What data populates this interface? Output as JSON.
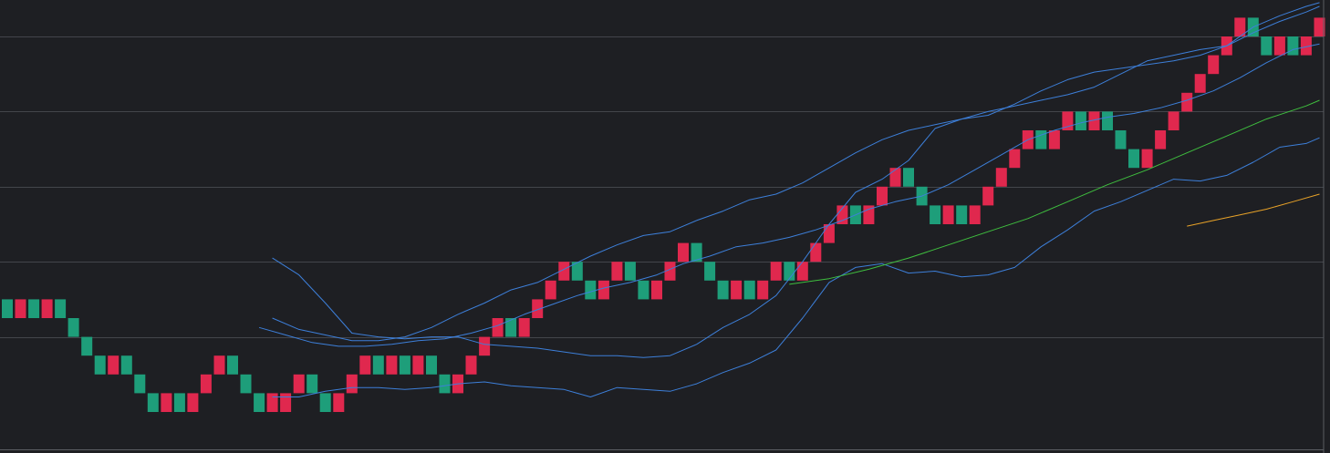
{
  "theme": {
    "background": "#1e1f23",
    "grid": "#43454b",
    "border": "#5a5c62",
    "bull": "#1e9e7a",
    "bear": "#e0284e",
    "band_line": "#3d7fd9",
    "ma_green": "#3fbf3f",
    "ma_orange": "#e8a228"
  },
  "chart_data": {
    "type": "renko",
    "brick_size": 1,
    "grid_levels": [
      6,
      10,
      14,
      18,
      22
    ],
    "y_range": [
      2,
      26
    ],
    "bricks": [
      {
        "i": 0,
        "lo": 7,
        "dir": "up"
      },
      {
        "i": 1,
        "lo": 7,
        "dir": "down"
      },
      {
        "i": 2,
        "lo": 7,
        "dir": "up"
      },
      {
        "i": 3,
        "lo": 7,
        "dir": "down"
      },
      {
        "i": 4,
        "lo": 7,
        "dir": "up"
      },
      {
        "i": 5,
        "lo": 6,
        "dir": "up"
      },
      {
        "i": 6,
        "lo": 5,
        "dir": "up"
      },
      {
        "i": 7,
        "lo": 4,
        "dir": "up"
      },
      {
        "i": 8,
        "lo": 4,
        "dir": "down"
      },
      {
        "i": 9,
        "lo": 4,
        "dir": "up"
      },
      {
        "i": 10,
        "lo": 3,
        "dir": "up"
      },
      {
        "i": 11,
        "lo": 2,
        "dir": "up"
      },
      {
        "i": 12,
        "lo": 2,
        "dir": "down"
      },
      {
        "i": 13,
        "lo": 2,
        "dir": "up"
      },
      {
        "i": 14,
        "lo": 2,
        "dir": "down"
      },
      {
        "i": 15,
        "lo": 3,
        "dir": "down"
      },
      {
        "i": 16,
        "lo": 4,
        "dir": "down"
      },
      {
        "i": 17,
        "lo": 4,
        "dir": "up"
      },
      {
        "i": 18,
        "lo": 3,
        "dir": "up"
      },
      {
        "i": 19,
        "lo": 2,
        "dir": "up"
      },
      {
        "i": 20,
        "lo": 2,
        "dir": "down"
      },
      {
        "i": 21,
        "lo": 2,
        "dir": "down"
      },
      {
        "i": 22,
        "lo": 3,
        "dir": "down"
      },
      {
        "i": 23,
        "lo": 3,
        "dir": "up"
      },
      {
        "i": 24,
        "lo": 2,
        "dir": "up"
      },
      {
        "i": 25,
        "lo": 2,
        "dir": "down"
      },
      {
        "i": 26,
        "lo": 3,
        "dir": "down"
      },
      {
        "i": 27,
        "lo": 4,
        "dir": "down"
      },
      {
        "i": 28,
        "lo": 4,
        "dir": "up"
      },
      {
        "i": 29,
        "lo": 4,
        "dir": "down"
      },
      {
        "i": 30,
        "lo": 4,
        "dir": "up"
      },
      {
        "i": 31,
        "lo": 4,
        "dir": "down"
      },
      {
        "i": 32,
        "lo": 4,
        "dir": "up"
      },
      {
        "i": 33,
        "lo": 3,
        "dir": "up"
      },
      {
        "i": 34,
        "lo": 3,
        "dir": "down"
      },
      {
        "i": 35,
        "lo": 4,
        "dir": "down"
      },
      {
        "i": 36,
        "lo": 5,
        "dir": "down"
      },
      {
        "i": 37,
        "lo": 6,
        "dir": "down"
      },
      {
        "i": 38,
        "lo": 6,
        "dir": "up"
      },
      {
        "i": 39,
        "lo": 6,
        "dir": "down"
      },
      {
        "i": 40,
        "lo": 7,
        "dir": "down"
      },
      {
        "i": 41,
        "lo": 8,
        "dir": "down"
      },
      {
        "i": 42,
        "lo": 9,
        "dir": "down"
      },
      {
        "i": 43,
        "lo": 9,
        "dir": "up"
      },
      {
        "i": 44,
        "lo": 8,
        "dir": "up"
      },
      {
        "i": 45,
        "lo": 8,
        "dir": "down"
      },
      {
        "i": 46,
        "lo": 9,
        "dir": "down"
      },
      {
        "i": 47,
        "lo": 9,
        "dir": "up"
      },
      {
        "i": 48,
        "lo": 8,
        "dir": "up"
      },
      {
        "i": 49,
        "lo": 8,
        "dir": "down"
      },
      {
        "i": 50,
        "lo": 9,
        "dir": "down"
      },
      {
        "i": 51,
        "lo": 10,
        "dir": "down"
      },
      {
        "i": 52,
        "lo": 10,
        "dir": "up"
      },
      {
        "i": 53,
        "lo": 9,
        "dir": "up"
      },
      {
        "i": 54,
        "lo": 8,
        "dir": "up"
      },
      {
        "i": 55,
        "lo": 8,
        "dir": "down"
      },
      {
        "i": 56,
        "lo": 8,
        "dir": "up"
      },
      {
        "i": 57,
        "lo": 8,
        "dir": "down"
      },
      {
        "i": 58,
        "lo": 9,
        "dir": "down"
      },
      {
        "i": 59,
        "lo": 9,
        "dir": "up"
      },
      {
        "i": 60,
        "lo": 9,
        "dir": "down"
      },
      {
        "i": 61,
        "lo": 10,
        "dir": "down"
      },
      {
        "i": 62,
        "lo": 11,
        "dir": "down"
      },
      {
        "i": 63,
        "lo": 12,
        "dir": "down"
      },
      {
        "i": 64,
        "lo": 12,
        "dir": "up"
      },
      {
        "i": 65,
        "lo": 12,
        "dir": "down"
      },
      {
        "i": 66,
        "lo": 13,
        "dir": "down"
      },
      {
        "i": 67,
        "lo": 14,
        "dir": "down"
      },
      {
        "i": 68,
        "lo": 14,
        "dir": "up"
      },
      {
        "i": 69,
        "lo": 13,
        "dir": "up"
      },
      {
        "i": 70,
        "lo": 12,
        "dir": "up"
      },
      {
        "i": 71,
        "lo": 12,
        "dir": "down"
      },
      {
        "i": 72,
        "lo": 12,
        "dir": "up"
      },
      {
        "i": 73,
        "lo": 12,
        "dir": "down"
      },
      {
        "i": 74,
        "lo": 13,
        "dir": "down"
      },
      {
        "i": 75,
        "lo": 14,
        "dir": "down"
      },
      {
        "i": 76,
        "lo": 15,
        "dir": "down"
      },
      {
        "i": 77,
        "lo": 16,
        "dir": "down"
      },
      {
        "i": 78,
        "lo": 16,
        "dir": "up"
      },
      {
        "i": 79,
        "lo": 16,
        "dir": "down"
      },
      {
        "i": 80,
        "lo": 17,
        "dir": "down"
      },
      {
        "i": 81,
        "lo": 17,
        "dir": "up"
      },
      {
        "i": 82,
        "lo": 17,
        "dir": "down"
      },
      {
        "i": 83,
        "lo": 17,
        "dir": "up"
      },
      {
        "i": 84,
        "lo": 16,
        "dir": "up"
      },
      {
        "i": 85,
        "lo": 15,
        "dir": "up"
      },
      {
        "i": 86,
        "lo": 15,
        "dir": "down"
      },
      {
        "i": 87,
        "lo": 16,
        "dir": "down"
      },
      {
        "i": 88,
        "lo": 17,
        "dir": "down"
      },
      {
        "i": 89,
        "lo": 18,
        "dir": "down"
      },
      {
        "i": 90,
        "lo": 19,
        "dir": "down"
      },
      {
        "i": 91,
        "lo": 20,
        "dir": "down"
      },
      {
        "i": 92,
        "lo": 21,
        "dir": "down"
      },
      {
        "i": 93,
        "lo": 22,
        "dir": "down"
      },
      {
        "i": 94,
        "lo": 22,
        "dir": "up"
      },
      {
        "i": 95,
        "lo": 21,
        "dir": "up"
      },
      {
        "i": 96,
        "lo": 21,
        "dir": "down"
      },
      {
        "i": 97,
        "lo": 21,
        "dir": "up"
      },
      {
        "i": 98,
        "lo": 21,
        "dir": "down"
      },
      {
        "i": 99,
        "lo": 22,
        "dir": "down"
      }
    ],
    "bricks_note": "",
    "series": [
      {
        "id": "upper-band",
        "color": "#3d7fd9",
        "x": [
          20,
          22,
          24,
          26,
          28,
          30,
          32,
          34,
          36,
          38,
          40,
          42,
          44,
          46,
          48,
          50,
          52,
          54,
          56,
          58,
          60,
          62,
          64,
          66,
          68,
          70,
          72,
          74,
          76,
          78,
          80,
          82,
          84,
          86,
          88,
          90,
          92,
          94,
          96,
          98,
          99
        ],
        "y": [
          10.2,
          9.3,
          7.8,
          6.2,
          6.0,
          5.9,
          6.0,
          6.0,
          5.6,
          5.5,
          5.4,
          5.2,
          5.0,
          5.0,
          4.9,
          5.0,
          5.6,
          6.5,
          7.2,
          8.2,
          10.0,
          12.0,
          13.7,
          14.4,
          15.4,
          17.1,
          17.6,
          18.0,
          18.3,
          18.6,
          18.9,
          19.3,
          20.0,
          20.7,
          21.0,
          21.3,
          21.5,
          22.2,
          22.8,
          23.3,
          23.6
        ]
      },
      {
        "id": "middle-band",
        "color": "#3d7fd9",
        "x": [
          19,
          21,
          23,
          25,
          27,
          29,
          31,
          33,
          35,
          37,
          39,
          41,
          43,
          45,
          47,
          49,
          51,
          53,
          55,
          57,
          59,
          61,
          63,
          65,
          67,
          69,
          71,
          73,
          75,
          77,
          79,
          81,
          83,
          85,
          87,
          89,
          91,
          93,
          95,
          97,
          99
        ],
        "y": [
          6.5,
          6.1,
          5.7,
          5.5,
          5.5,
          5.6,
          5.8,
          5.9,
          6.2,
          6.6,
          7.2,
          7.7,
          8.2,
          8.6,
          8.9,
          9.3,
          9.9,
          10.3,
          10.8,
          11.0,
          11.3,
          11.7,
          12.2,
          12.8,
          13.2,
          13.5,
          14.1,
          14.9,
          15.7,
          16.5,
          17.0,
          17.4,
          17.7,
          17.9,
          18.2,
          18.6,
          19.1,
          19.8,
          20.6,
          21.3,
          21.6
        ]
      },
      {
        "id": "lower-band",
        "color": "#3d7fd9",
        "x": [
          20,
          22,
          24,
          26,
          28,
          30,
          32,
          34,
          36,
          38,
          40,
          42,
          44,
          46,
          48,
          50,
          52,
          54,
          56,
          58,
          60,
          62,
          64,
          66,
          68,
          70,
          72,
          74,
          76,
          78,
          80,
          82,
          84,
          86,
          88,
          90,
          92,
          94,
          96,
          98,
          99
        ],
        "y": [
          7.0,
          6.4,
          6.1,
          5.8,
          5.8,
          6.0,
          6.5,
          7.2,
          7.8,
          8.5,
          8.9,
          9.6,
          10.3,
          10.9,
          11.4,
          11.6,
          12.2,
          12.7,
          13.3,
          13.6,
          14.2,
          15.0,
          15.8,
          16.5,
          17.0,
          17.3,
          17.6,
          17.8,
          18.4,
          19.1,
          19.7,
          20.1,
          20.3,
          20.5,
          20.7,
          21.0,
          21.5,
          22.5,
          23.1,
          23.6,
          23.8
        ]
      },
      {
        "id": "lagging-line",
        "color": "#3d7fd9",
        "x": [
          20,
          22,
          24,
          26,
          28,
          30,
          32,
          34,
          36,
          38,
          40,
          42,
          44,
          46,
          48,
          50,
          52,
          54,
          56,
          58,
          60,
          62,
          64,
          66,
          68,
          70,
          72,
          74,
          76,
          78,
          80,
          82,
          84,
          86,
          88,
          90,
          92,
          94,
          96,
          98,
          99
        ],
        "y": [
          2.8,
          2.8,
          3.1,
          3.3,
          3.3,
          3.2,
          3.3,
          3.5,
          3.6,
          3.4,
          3.3,
          3.2,
          2.8,
          3.3,
          3.2,
          3.1,
          3.5,
          4.1,
          4.6,
          5.3,
          7.0,
          8.9,
          9.7,
          9.9,
          9.4,
          9.5,
          9.2,
          9.3,
          9.7,
          10.8,
          11.7,
          12.7,
          13.2,
          13.8,
          14.4,
          14.3,
          14.6,
          15.3,
          16.1,
          16.3,
          16.6
        ]
      },
      {
        "id": "moving-average-green",
        "color": "#3fbf3f",
        "x": [
          59,
          62,
          65,
          68,
          71,
          74,
          77,
          80,
          83,
          86,
          89,
          92,
          95,
          98,
          99
        ],
        "y": [
          8.8,
          9.1,
          9.6,
          10.2,
          10.9,
          11.6,
          12.3,
          13.2,
          14.1,
          14.9,
          15.8,
          16.7,
          17.6,
          18.3,
          18.6
        ]
      },
      {
        "id": "moving-average-orange",
        "color": "#e8a228",
        "x": [
          89,
          91,
          93,
          95,
          97,
          99
        ],
        "y": [
          11.9,
          12.2,
          12.5,
          12.8,
          13.2,
          13.6
        ]
      }
    ],
    "grid": true,
    "legend": "none",
    "title": "",
    "xlabel": "",
    "ylabel": ""
  }
}
